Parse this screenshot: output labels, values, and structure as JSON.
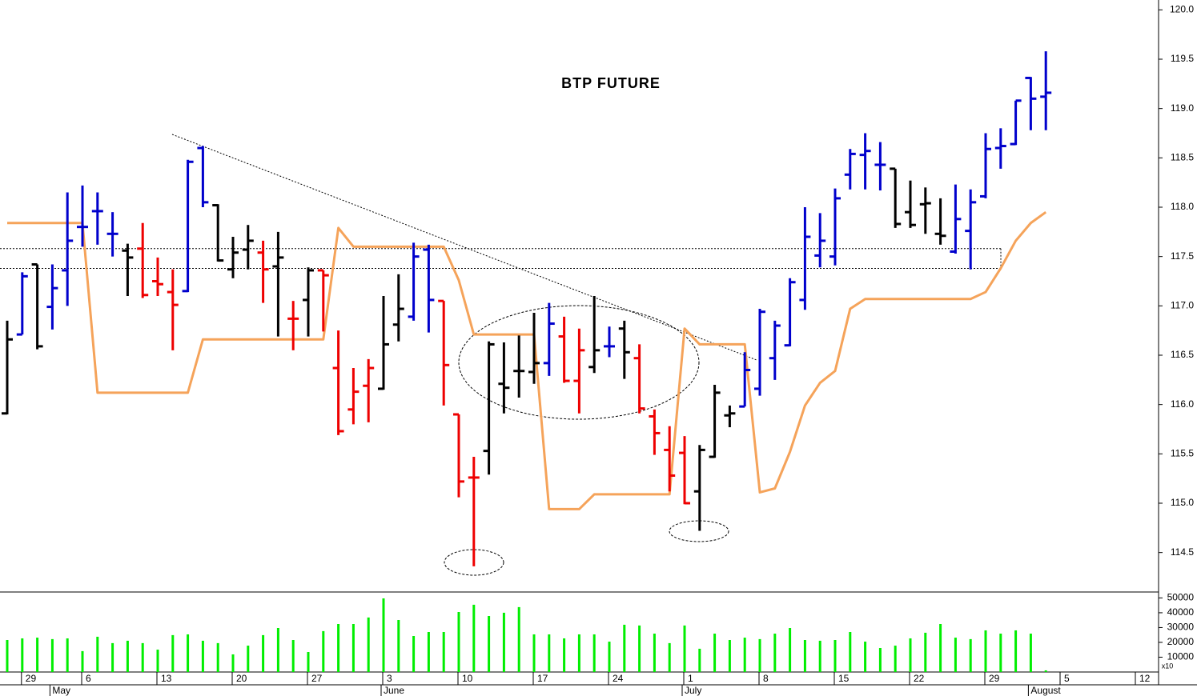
{
  "chart_data": {
    "type": "ohlc",
    "title": "BTP FUTURE",
    "categories": [
      null,
      "29",
      null,
      null,
      null,
      "6",
      null,
      null,
      null,
      null,
      "13",
      null,
      null,
      null,
      null,
      "20",
      null,
      null,
      null,
      null,
      "27",
      null,
      null,
      null,
      null,
      "3",
      null,
      null,
      null,
      null,
      "10",
      null,
      null,
      null,
      null,
      "17",
      null,
      null,
      null,
      null,
      "24",
      null,
      null,
      null,
      null,
      "1",
      null,
      null,
      null,
      null,
      "8",
      null,
      null,
      null,
      null,
      "15",
      null,
      null,
      null,
      null,
      "22",
      null,
      null,
      null,
      null,
      "29",
      null,
      null,
      null,
      null,
      "5",
      null,
      null,
      null,
      null,
      "12"
    ],
    "months": [
      null,
      null,
      null,
      "May",
      null,
      null,
      null,
      null,
      null,
      null,
      null,
      null,
      null,
      null,
      null,
      null,
      null,
      null,
      null,
      null,
      null,
      null,
      null,
      null,
      null,
      "June",
      null,
      null,
      null,
      null,
      null,
      null,
      null,
      null,
      null,
      null,
      null,
      null,
      null,
      null,
      null,
      null,
      null,
      null,
      null,
      "July",
      null,
      null,
      null,
      null,
      null,
      null,
      null,
      null,
      null,
      null,
      null,
      null,
      null,
      null,
      null,
      null,
      null,
      null,
      null,
      null,
      null,
      null,
      "August",
      null,
      null,
      null,
      null,
      null,
      null,
      null
    ],
    "open": [
      115.91,
      116.71,
      117.42,
      116.99,
      117.36,
      117.8,
      117.96,
      117.73,
      117.56,
      117.58,
      117.25,
      117.14,
      117.15,
      118.6,
      118.02,
      117.37,
      117.57,
      117.54,
      117.4,
      116.87,
      117.06,
      117.36,
      116.37,
      115.95,
      116.19,
      116.16,
      116.81,
      116.89,
      117.57,
      117.05,
      115.9,
      115.26,
      115.53,
      116.21,
      116.34,
      116.33,
      116.42,
      116.69,
      116.24,
      116.38,
      116.59,
      116.77,
      116.47,
      115.88,
      115.54,
      115.51,
      115.12,
      115.47,
      115.89,
      115.98,
      116.16,
      116.47,
      116.6,
      117.06,
      117.51,
      117.5,
      118.33,
      118.53,
      118.43,
      118.39,
      117.95,
      118.03,
      117.73,
      117.55,
      117.76,
      118.11,
      118.6,
      118.64,
      119.31,
      119.12,
      null,
      null,
      null,
      null,
      null,
      null
    ],
    "high": [
      116.85,
      117.34,
      117.42,
      117.42,
      118.15,
      118.22,
      118.15,
      117.95,
      117.63,
      117.84,
      117.49,
      117.37,
      118.48,
      118.62,
      118.03,
      117.7,
      117.82,
      117.66,
      117.75,
      117.05,
      117.39,
      117.36,
      116.75,
      116.37,
      116.46,
      117.1,
      117.32,
      117.64,
      117.62,
      117.05,
      115.9,
      115.47,
      116.64,
      116.63,
      116.7,
      116.93,
      117.03,
      116.89,
      116.77,
      117.1,
      116.79,
      116.85,
      116.61,
      115.95,
      115.78,
      115.68,
      115.59,
      116.2,
      115.99,
      116.53,
      116.97,
      116.85,
      117.28,
      118.0,
      117.94,
      118.19,
      118.59,
      118.75,
      118.66,
      118.39,
      118.27,
      118.2,
      118.09,
      118.23,
      118.18,
      118.75,
      118.8,
      119.08,
      119.32,
      119.58,
      null,
      null,
      null,
      null,
      null,
      null
    ],
    "low": [
      115.9,
      116.71,
      116.56,
      116.76,
      117.0,
      117.6,
      117.62,
      117.5,
      117.1,
      117.08,
      117.1,
      116.55,
      117.14,
      118.0,
      117.45,
      117.28,
      117.37,
      117.03,
      116.69,
      116.55,
      116.69,
      116.74,
      115.69,
      115.8,
      115.82,
      116.15,
      116.64,
      116.85,
      116.73,
      115.99,
      115.06,
      114.36,
      115.29,
      115.91,
      116.07,
      116.21,
      116.29,
      116.22,
      115.91,
      116.32,
      116.48,
      116.26,
      115.91,
      115.49,
      115.12,
      114.99,
      114.72,
      115.46,
      115.77,
      115.98,
      116.09,
      116.25,
      116.59,
      116.96,
      117.39,
      117.41,
      118.18,
      118.18,
      118.17,
      117.79,
      117.79,
      117.73,
      117.62,
      117.53,
      117.37,
      118.09,
      118.39,
      118.63,
      118.78,
      118.78,
      null,
      null,
      null,
      null,
      null,
      null
    ],
    "close": [
      116.66,
      117.3,
      116.59,
      117.18,
      117.66,
      117.8,
      117.96,
      117.73,
      117.49,
      117.11,
      117.22,
      117.01,
      118.46,
      118.05,
      117.46,
      117.54,
      117.66,
      117.37,
      117.49,
      116.87,
      117.36,
      117.31,
      115.73,
      116.13,
      116.37,
      116.61,
      116.97,
      117.5,
      117.06,
      116.4,
      115.22,
      115.26,
      116.61,
      116.17,
      116.34,
      116.42,
      116.82,
      116.24,
      116.55,
      116.55,
      116.59,
      116.53,
      115.96,
      115.71,
      115.28,
      115.0,
      115.54,
      116.12,
      115.91,
      116.35,
      116.94,
      116.8,
      117.24,
      117.7,
      117.66,
      118.09,
      118.54,
      118.57,
      118.43,
      117.83,
      117.82,
      118.04,
      117.71,
      117.88,
      118.05,
      118.59,
      118.62,
      119.08,
      119.1,
      119.16,
      null,
      null,
      null,
      null,
      null,
      null
    ],
    "bar_colors": [
      "#000000",
      "#0000cc",
      "#000000",
      "#0000cc",
      "#0000cc",
      "#0000cc",
      "#0000cc",
      "#0000cc",
      "#000000",
      "#ee0000",
      "#ee0000",
      "#ee0000",
      "#0000cc",
      "#0000cc",
      "#000000",
      "#000000",
      "#000000",
      "#ee0000",
      "#000000",
      "#ee0000",
      "#000000",
      "#ee0000",
      "#ee0000",
      "#ee0000",
      "#ee0000",
      "#000000",
      "#000000",
      "#0000cc",
      "#0000cc",
      "#ee0000",
      "#ee0000",
      "#ee0000",
      "#000000",
      "#000000",
      "#000000",
      "#000000",
      "#0000cc",
      "#ee0000",
      "#ee0000",
      "#000000",
      "#0000cc",
      "#000000",
      "#ee0000",
      "#ee0000",
      "#ee0000",
      "#ee0000",
      "#000000",
      "#000000",
      "#000000",
      "#0000cc",
      "#0000cc",
      "#0000cc",
      "#0000cc",
      "#0000cc",
      "#0000cc",
      "#0000cc",
      "#0000cc",
      "#0000cc",
      "#0000cc",
      "#000000",
      "#000000",
      "#000000",
      "#000000",
      "#0000cc",
      "#0000cc",
      "#0000cc",
      "#0000cc",
      "#0000cc",
      "#0000cc",
      "#0000cc",
      null,
      null,
      null,
      null,
      null,
      null
    ],
    "overlay": {
      "color": "#f5a35a",
      "values": [
        117.84,
        117.84,
        117.84,
        117.84,
        117.84,
        117.84,
        116.12,
        116.12,
        116.12,
        116.12,
        116.12,
        116.12,
        116.12,
        116.66,
        116.66,
        116.66,
        116.66,
        116.66,
        116.66,
        116.66,
        116.66,
        116.66,
        117.79,
        117.6,
        117.6,
        117.6,
        117.6,
        117.6,
        117.6,
        117.6,
        117.26,
        116.71,
        116.71,
        116.71,
        116.71,
        116.71,
        114.94,
        114.94,
        114.94,
        115.09,
        115.09,
        115.09,
        115.09,
        115.09,
        115.09,
        116.77,
        116.61,
        116.61,
        116.61,
        116.61,
        115.11,
        115.15,
        115.52,
        115.99,
        116.22,
        116.34,
        116.97,
        117.07,
        117.07,
        117.07,
        117.07,
        117.07,
        117.07,
        117.07,
        117.07,
        117.14,
        117.38,
        117.66,
        117.84,
        117.95,
        null,
        null,
        null,
        null,
        null,
        null
      ]
    },
    "levels": [
      117.58,
      117.38
    ],
    "ylim": [
      114.1,
      120.1
    ],
    "yticks": [
      {
        "value": 114.5,
        "label": "114.5"
      },
      {
        "value": 115,
        "label": "115.0"
      },
      {
        "value": 115.5,
        "label": "115.5"
      },
      {
        "value": 116,
        "label": "116.0"
      },
      {
        "value": 116.5,
        "label": "116.5"
      },
      {
        "value": 117,
        "label": "117.0"
      },
      {
        "value": 117.5,
        "label": "117.5"
      },
      {
        "value": 118,
        "label": "118.0"
      },
      {
        "value": 118.5,
        "label": "118.5"
      },
      {
        "value": 119,
        "label": "119.0"
      },
      {
        "value": 119.5,
        "label": "119.5"
      },
      {
        "value": 120,
        "label": "120.0"
      }
    ],
    "volume": {
      "color": "#00ee00",
      "multiplier_label": "x10",
      "values": [
        21600,
        22700,
        23200,
        22200,
        22700,
        14100,
        23800,
        19500,
        21100,
        19500,
        15100,
        24900,
        25400,
        21100,
        19500,
        11900,
        17800,
        24900,
        29700,
        21600,
        13500,
        27600,
        32400,
        32400,
        36800,
        49700,
        35100,
        24300,
        27000,
        27000,
        40500,
        45400,
        37800,
        40000,
        43800,
        25400,
        25400,
        22700,
        25400,
        25400,
        20500,
        31900,
        31400,
        25900,
        19500,
        31400,
        15700,
        25900,
        21600,
        23200,
        22200,
        25900,
        29700,
        21600,
        21100,
        21600,
        27000,
        20500,
        16200,
        17800,
        22700,
        26500,
        32400,
        23200,
        22200,
        28100,
        25900,
        28100,
        25900,
        1100,
        null,
        null,
        null,
        null,
        null,
        null
      ],
      "ylim": [
        0,
        54000
      ],
      "yticks": [
        10000,
        20000,
        30000,
        40000,
        50000
      ]
    }
  }
}
